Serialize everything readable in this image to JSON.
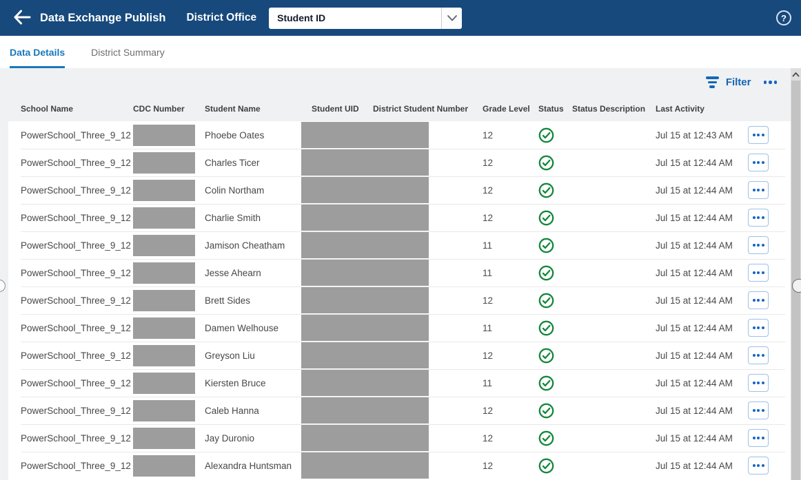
{
  "header": {
    "title": "Data Exchange Publish",
    "context": "District Office",
    "dropdown_value": "Student ID",
    "help_label": "?"
  },
  "tabs": [
    {
      "label": "Data Details",
      "active": true
    },
    {
      "label": "District Summary",
      "active": false
    }
  ],
  "toolbar": {
    "filter_label": "Filter",
    "more_icon": "ellipsis"
  },
  "table": {
    "columns": [
      "School Name",
      "CDC Number",
      "Student Name",
      "Student UID",
      "District Student Number",
      "Grade Level",
      "Status",
      "Status Description",
      "Last Activity"
    ],
    "rows": [
      {
        "school": "PowerSchool_Three_9_12",
        "cdc_redacted": true,
        "student": "Phoebe Oates",
        "ids_redacted": true,
        "grade": "12",
        "status": "success",
        "status_description": "",
        "last_activity": "Jul 15 at 12:43 AM"
      },
      {
        "school": "PowerSchool_Three_9_12",
        "cdc_redacted": true,
        "student": "Charles Ticer",
        "ids_redacted": true,
        "grade": "12",
        "status": "success",
        "status_description": "",
        "last_activity": "Jul 15 at 12:44 AM"
      },
      {
        "school": "PowerSchool_Three_9_12",
        "cdc_redacted": true,
        "student": "Colin Northam",
        "ids_redacted": true,
        "grade": "12",
        "status": "success",
        "status_description": "",
        "last_activity": "Jul 15 at 12:44 AM"
      },
      {
        "school": "PowerSchool_Three_9_12",
        "cdc_redacted": true,
        "student": "Charlie Smith",
        "ids_redacted": true,
        "grade": "12",
        "status": "success",
        "status_description": "",
        "last_activity": "Jul 15 at 12:44 AM"
      },
      {
        "school": "PowerSchool_Three_9_12",
        "cdc_redacted": true,
        "student": "Jamison Cheatham",
        "ids_redacted": true,
        "grade": "11",
        "status": "success",
        "status_description": "",
        "last_activity": "Jul 15 at 12:44 AM"
      },
      {
        "school": "PowerSchool_Three_9_12",
        "cdc_redacted": true,
        "student": "Jesse Ahearn",
        "ids_redacted": true,
        "grade": "11",
        "status": "success",
        "status_description": "",
        "last_activity": "Jul 15 at 12:44 AM"
      },
      {
        "school": "PowerSchool_Three_9_12",
        "cdc_redacted": true,
        "student": "Brett Sides",
        "ids_redacted": true,
        "grade": "12",
        "status": "success",
        "status_description": "",
        "last_activity": "Jul 15 at 12:44 AM"
      },
      {
        "school": "PowerSchool_Three_9_12",
        "cdc_redacted": true,
        "student": "Damen Welhouse",
        "ids_redacted": true,
        "grade": "11",
        "status": "success",
        "status_description": "",
        "last_activity": "Jul 15 at 12:44 AM"
      },
      {
        "school": "PowerSchool_Three_9_12",
        "cdc_redacted": true,
        "student": "Greyson Liu",
        "ids_redacted": true,
        "grade": "12",
        "status": "success",
        "status_description": "",
        "last_activity": "Jul 15 at 12:44 AM"
      },
      {
        "school": "PowerSchool_Three_9_12",
        "cdc_redacted": true,
        "student": "Kiersten Bruce",
        "ids_redacted": true,
        "grade": "11",
        "status": "success",
        "status_description": "",
        "last_activity": "Jul 15 at 12:44 AM"
      },
      {
        "school": "PowerSchool_Three_9_12",
        "cdc_redacted": true,
        "student": "Caleb Hanna",
        "ids_redacted": true,
        "grade": "12",
        "status": "success",
        "status_description": "",
        "last_activity": "Jul 15 at 12:44 AM"
      },
      {
        "school": "PowerSchool_Three_9_12",
        "cdc_redacted": true,
        "student": "Jay Duronio",
        "ids_redacted": true,
        "grade": "12",
        "status": "success",
        "status_description": "",
        "last_activity": "Jul 15 at 12:44 AM"
      },
      {
        "school": "PowerSchool_Three_9_12",
        "cdc_redacted": true,
        "student": "Alexandra Huntsman",
        "ids_redacted": true,
        "grade": "12",
        "status": "success",
        "status_description": "",
        "last_activity": "Jul 15 at 12:44 AM"
      }
    ]
  },
  "colors": {
    "header_bg": "#17497C",
    "accent_blue": "#1566B3",
    "tab_active_blue": "#1778BA",
    "status_green": "#13873B",
    "redaction_gray": "#9D9D9D"
  }
}
